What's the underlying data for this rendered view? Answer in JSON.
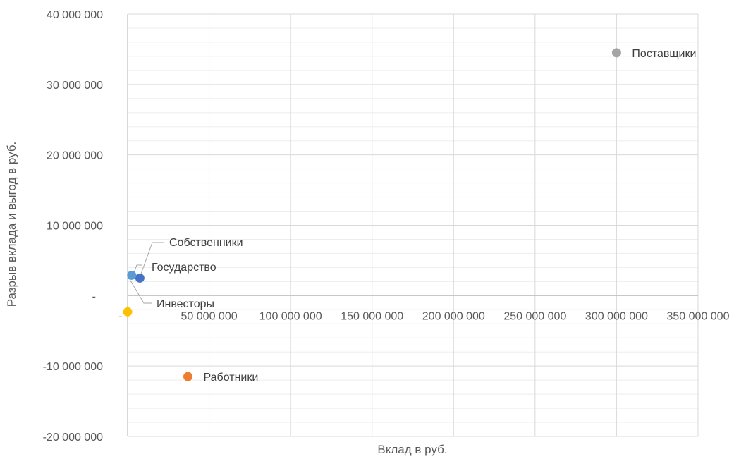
{
  "chart_data": {
    "type": "scatter",
    "title": "",
    "xlabel": "Вклад в руб.",
    "ylabel": "Разрыв вклада и выгод в руб.",
    "xlim": [
      0,
      350000000
    ],
    "ylim": [
      -20000000,
      40000000
    ],
    "grid": true,
    "legend": "none",
    "x_ticks": [
      {
        "value": 0,
        "label": "-"
      },
      {
        "value": 50000000,
        "label": "50 000 000"
      },
      {
        "value": 100000000,
        "label": "100 000 000"
      },
      {
        "value": 150000000,
        "label": "150 000 000"
      },
      {
        "value": 200000000,
        "label": "200 000 000"
      },
      {
        "value": 250000000,
        "label": "250 000 000"
      },
      {
        "value": 300000000,
        "label": "300 000 000"
      },
      {
        "value": 350000000,
        "label": "350 000 000"
      }
    ],
    "y_ticks": [
      {
        "value": 40000000,
        "label": "40 000 000"
      },
      {
        "value": 30000000,
        "label": "30 000 000"
      },
      {
        "value": 20000000,
        "label": "20 000 000"
      },
      {
        "value": 10000000,
        "label": "10 000 000"
      },
      {
        "value": 0,
        "label": "-"
      },
      {
        "value": -10000000,
        "label": "-10 000 000"
      },
      {
        "value": -20000000,
        "label": "-20 000 000"
      }
    ],
    "points": [
      {
        "name": "Поставщики",
        "x": 300000000,
        "y": 34500000,
        "color": "#A5A5A5"
      },
      {
        "name": "Работники",
        "x": 37000000,
        "y": -11500000,
        "color": "#ED7D31"
      },
      {
        "name": "Собственники",
        "x": 7500000,
        "y": 2500000,
        "color": "#4472C4"
      },
      {
        "name": "Государство",
        "x": 2500000,
        "y": 2900000,
        "color": "#5B9BD5"
      },
      {
        "name": "Инвесторы",
        "x": 0,
        "y": -2300000,
        "color": "#FFC000"
      }
    ]
  }
}
